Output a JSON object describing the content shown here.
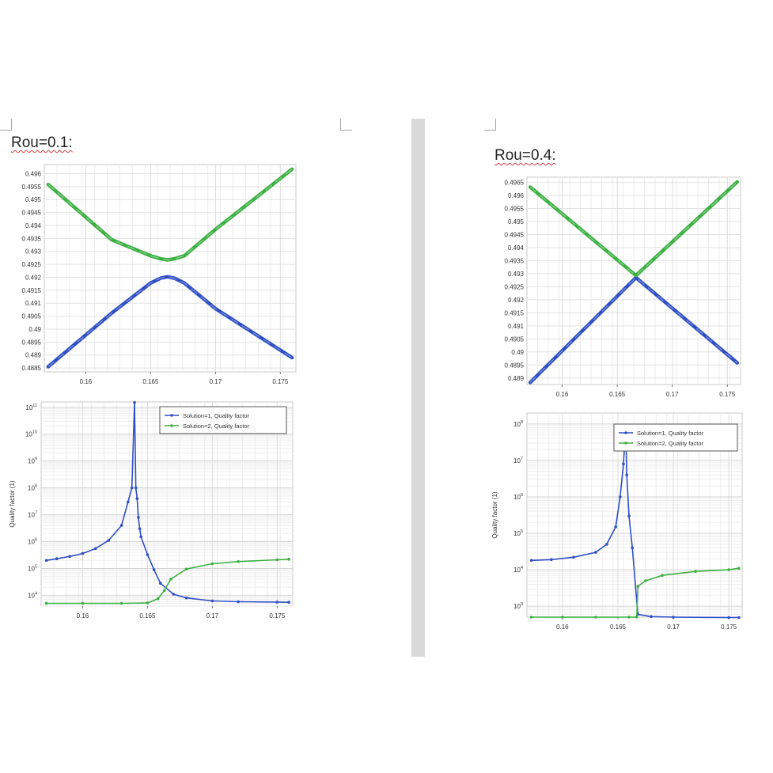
{
  "left": {
    "heading": "Rou=0.1:"
  },
  "right": {
    "heading": "Rou=0.4:"
  },
  "chart_data": [
    {
      "id": "rou01-eigen",
      "type": "line",
      "panel": "left",
      "xlim": [
        0.1568,
        0.1762
      ],
      "ylim": [
        0.48835,
        0.49635
      ],
      "xticks": [
        "0.16",
        "0.165",
        "0.17",
        "0.175"
      ],
      "xtick_values": [
        0.16,
        0.165,
        0.17,
        0.175
      ],
      "yticks": [
        "0.4885",
        "0.489",
        "0.4895",
        "0.49",
        "0.4905",
        "0.491",
        "0.4915",
        "0.492",
        "0.4925",
        "0.493",
        "0.4935",
        "0.494",
        "0.4945",
        "0.495",
        "0.4955",
        "0.496"
      ],
      "ytick_values": [
        0.4885,
        0.489,
        0.4895,
        0.49,
        0.4905,
        0.491,
        0.4915,
        0.492,
        0.4925,
        0.493,
        0.4935,
        0.494,
        0.4945,
        0.495,
        0.4955,
        0.496
      ],
      "grid": true,
      "series": [
        {
          "color": "#2f4fc4",
          "x": [
            0.1571,
            0.162,
            0.165,
            0.1658,
            0.1663,
            0.1668,
            0.1676,
            0.17,
            0.1759
          ],
          "y": [
            0.48855,
            0.49062,
            0.49178,
            0.49197,
            0.49202,
            0.49197,
            0.49178,
            0.49079,
            0.4889
          ]
        },
        {
          "color": "#3cb043",
          "x": [
            0.1571,
            0.162,
            0.165,
            0.1658,
            0.1663,
            0.1668,
            0.1676,
            0.17,
            0.1759
          ],
          "y": [
            0.49558,
            0.49345,
            0.49283,
            0.49271,
            0.49267,
            0.49271,
            0.49283,
            0.49385,
            0.49617
          ]
        }
      ]
    },
    {
      "id": "rou04-eigen",
      "type": "line",
      "panel": "right",
      "xlim": [
        0.1568,
        0.1762
      ],
      "ylim": [
        0.48875,
        0.4967
      ],
      "xticks": [
        "0.16",
        "0.165",
        "0.17",
        "0.175"
      ],
      "xtick_values": [
        0.16,
        0.165,
        0.17,
        0.175
      ],
      "yticks": [
        "0.489",
        "0.4895",
        "0.49",
        "0.4905",
        "0.491",
        "0.4915",
        "0.492",
        "0.4925",
        "0.493",
        "0.4935",
        "0.494",
        "0.4945",
        "0.495",
        "0.4955",
        "0.496",
        "0.4965"
      ],
      "ytick_values": [
        0.489,
        0.4895,
        0.49,
        0.4905,
        0.491,
        0.4915,
        0.492,
        0.4925,
        0.493,
        0.4935,
        0.494,
        0.4945,
        0.495,
        0.4955,
        0.496,
        0.4965
      ],
      "grid": true,
      "series": [
        {
          "color": "#2f4fc4",
          "x": [
            0.1571,
            0.1667,
            0.1759
          ],
          "y": [
            0.48883,
            0.49285,
            0.48958
          ]
        },
        {
          "color": "#3cb043",
          "x": [
            0.1571,
            0.1667,
            0.1759
          ],
          "y": [
            0.49632,
            0.49293,
            0.49652
          ]
        }
      ]
    },
    {
      "id": "rou01-quality",
      "type": "line",
      "panel": "left",
      "ylabel": "Quality factor (1)",
      "yscale": "log",
      "xlim": [
        0.1568,
        0.1762
      ],
      "ylim_log10": [
        3.6,
        11.2
      ],
      "xticks": [
        "0.16",
        "0.165",
        "0.17",
        "0.175"
      ],
      "xtick_values": [
        0.16,
        0.165,
        0.17,
        0.175
      ],
      "ytick_exponents": [
        4,
        5,
        6,
        7,
        8,
        9,
        10,
        11
      ],
      "ytick_base": "10",
      "grid": true,
      "legend_position": "top-right",
      "series": [
        {
          "name": "Solution=1, Quality factor",
          "color": "#2f4fc4",
          "x": [
            0.1572,
            0.158,
            0.159,
            0.16,
            0.161,
            0.162,
            0.163,
            0.1635,
            0.1638,
            0.164,
            0.1641,
            0.1642,
            0.1643,
            0.1644,
            0.1645,
            0.165,
            0.1655,
            0.166,
            0.167,
            0.168,
            0.17,
            0.172,
            0.175,
            0.1759
          ],
          "y": [
            200000,
            230000,
            280000,
            360000,
            550000,
            1100000,
            4000000,
            30000000,
            100000000,
            150000000000,
            100000000,
            40000000,
            8000000,
            3000000,
            1500000,
            330000,
            90000,
            28000,
            11000,
            8000,
            6200,
            5800,
            5600,
            5500
          ]
        },
        {
          "name": "Solution=2, Quality factor",
          "color": "#3cb043",
          "x": [
            0.1572,
            0.16,
            0.163,
            0.165,
            0.1658,
            0.1663,
            0.1668,
            0.168,
            0.17,
            0.172,
            0.175,
            0.1759
          ],
          "y": [
            5000,
            5000,
            5000,
            5200,
            7500,
            15000,
            40000,
            95000,
            150000,
            180000,
            210000,
            220000
          ]
        }
      ]
    },
    {
      "id": "rou04-quality",
      "type": "line",
      "panel": "right",
      "ylabel": "Quality factor (1)",
      "yscale": "log",
      "xlim": [
        0.1568,
        0.1762
      ],
      "ylim_log10": [
        2.7,
        8.3
      ],
      "xticks": [
        "0.16",
        "0.165",
        "0.17",
        "0.175"
      ],
      "xtick_values": [
        0.16,
        0.165,
        0.17,
        0.175
      ],
      "ytick_exponents": [
        3,
        4,
        5,
        6,
        7,
        8
      ],
      "ytick_base": "10",
      "grid": true,
      "legend_position": "top-right",
      "series": [
        {
          "name": "Solution=1, Quality factor",
          "color": "#2f4fc4",
          "x": [
            0.1572,
            0.159,
            0.161,
            0.163,
            0.164,
            0.1648,
            0.1652,
            0.1655,
            0.1657,
            0.1658,
            0.166,
            0.1663,
            0.1668,
            0.168,
            0.17,
            0.175,
            0.1759
          ],
          "y": [
            18000,
            19000,
            22000,
            30000,
            50000,
            150000,
            1000000,
            8000000,
            80000000,
            4000000,
            300000,
            40000,
            600,
            520,
            500,
            490,
            490
          ]
        },
        {
          "name": "Solution=2, Quality factor",
          "color": "#3cb043",
          "x": [
            0.1572,
            0.16,
            0.163,
            0.166,
            0.1667,
            0.1668,
            0.1675,
            0.169,
            0.172,
            0.175,
            0.1759
          ],
          "y": [
            500,
            500,
            500,
            500,
            500,
            3500,
            5000,
            7000,
            9000,
            10000,
            11000
          ]
        }
      ]
    }
  ]
}
